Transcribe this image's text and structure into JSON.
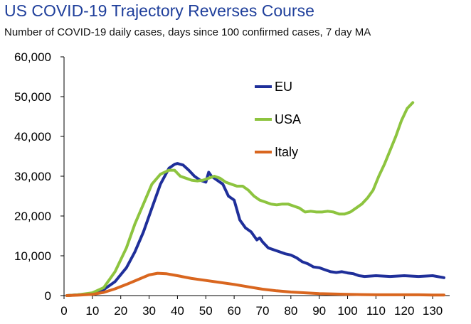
{
  "chart_data": {
    "type": "line",
    "title": "US COVID-19 Trajectory Reverses Course",
    "subtitle": "Number of COVID-19 daily cases, days since 100 confirmed cases, 7 day MA",
    "xlabel": "",
    "ylabel": "",
    "xlim": [
      0,
      136
    ],
    "ylim": [
      0,
      60000
    ],
    "xticks": [
      "0",
      "10",
      "20",
      "30",
      "40",
      "50",
      "60",
      "70",
      "80",
      "90",
      "100",
      "110",
      "120",
      "130"
    ],
    "yticks": [
      "0",
      "10,000",
      "20,000",
      "30,000",
      "40,000",
      "50,000",
      "60,000"
    ],
    "grid": false,
    "legend_position": "top-center",
    "series": [
      {
        "name": "EU",
        "color": "#1f2f9a",
        "x": [
          1,
          5,
          10,
          14,
          18,
          22,
          25,
          28,
          31,
          34,
          37,
          39,
          40,
          42,
          44,
          46,
          48,
          50,
          51,
          52,
          54,
          56,
          58,
          60,
          62,
          64,
          66,
          68,
          69,
          70,
          72,
          74,
          76,
          78,
          80,
          82,
          84,
          86,
          88,
          90,
          92,
          94,
          96,
          98,
          100,
          102,
          104,
          106,
          110,
          115,
          120,
          125,
          130,
          134
        ],
        "y": [
          0,
          200,
          500,
          1500,
          3500,
          7000,
          11000,
          16000,
          22000,
          28000,
          32000,
          33000,
          33200,
          32800,
          31500,
          30000,
          29000,
          28500,
          31000,
          30000,
          29000,
          28000,
          25000,
          24000,
          19000,
          17000,
          16000,
          14000,
          14500,
          13500,
          12000,
          11500,
          11000,
          10500,
          10200,
          9500,
          8500,
          8000,
          7200,
          7000,
          6500,
          6000,
          5800,
          6000,
          5700,
          5500,
          5000,
          4800,
          5000,
          4800,
          5000,
          4800,
          5000,
          4500
        ]
      },
      {
        "name": "USA",
        "color": "#8dc43f",
        "x": [
          1,
          5,
          10,
          14,
          18,
          22,
          25,
          28,
          31,
          34,
          37,
          39,
          41,
          43,
          45,
          47,
          49,
          51,
          53,
          55,
          57,
          59,
          61,
          63,
          65,
          67,
          69,
          71,
          73,
          75,
          77,
          79,
          81,
          83,
          85,
          87,
          89,
          91,
          93,
          95,
          97,
          99,
          101,
          103,
          105,
          107,
          109,
          111,
          113,
          115,
          117,
          119,
          121,
          123
        ],
        "y": [
          0,
          200,
          700,
          2000,
          6000,
          12000,
          18000,
          23000,
          28000,
          30500,
          31500,
          31500,
          30000,
          29500,
          29000,
          28800,
          29000,
          29500,
          30000,
          29500,
          28500,
          28000,
          27500,
          27500,
          26500,
          25000,
          24000,
          23500,
          23000,
          22800,
          23000,
          23000,
          22500,
          22000,
          21000,
          21200,
          21000,
          21000,
          21200,
          21000,
          20500,
          20500,
          21000,
          22000,
          23000,
          24500,
          26500,
          30000,
          33000,
          36500,
          40000,
          44000,
          47000,
          48500
        ]
      },
      {
        "name": "Italy",
        "color": "#d9661f",
        "x": [
          1,
          5,
          10,
          14,
          18,
          22,
          26,
          30,
          33,
          36,
          40,
          45,
          50,
          55,
          60,
          65,
          70,
          75,
          80,
          85,
          90,
          95,
          100,
          105,
          110,
          115,
          120,
          125,
          130,
          134
        ],
        "y": [
          0,
          100,
          300,
          800,
          1700,
          2800,
          4000,
          5200,
          5600,
          5500,
          5000,
          4300,
          3800,
          3300,
          2800,
          2200,
          1600,
          1200,
          900,
          700,
          500,
          400,
          300,
          250,
          200,
          200,
          200,
          200,
          150,
          150
        ]
      }
    ]
  }
}
